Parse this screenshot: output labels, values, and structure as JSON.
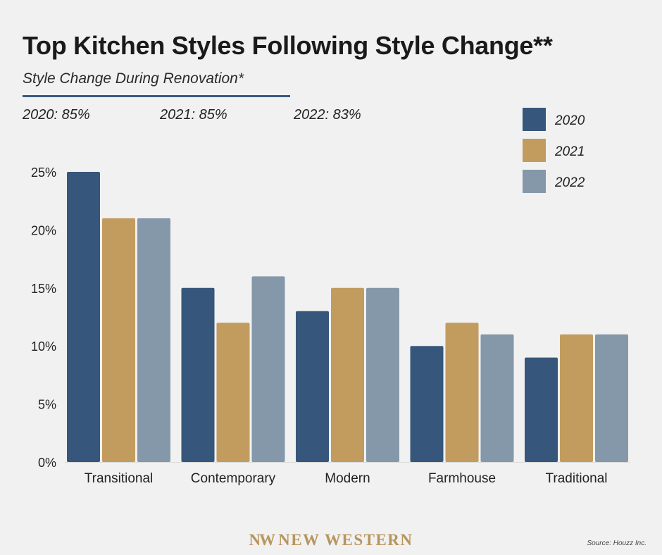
{
  "title": "Top Kitchen Styles Following Style Change**",
  "subtitle": "Style Change During Renovation*",
  "stats": [
    {
      "label": "2020: 85%"
    },
    {
      "label": "2021: 85%"
    },
    {
      "label": "2022: 83%"
    }
  ],
  "footer": {
    "logo_mark": "NW",
    "logo_text": "NEW WESTERN",
    "source": "Source: Houzz Inc."
  },
  "colors": {
    "2020": "#36577b",
    "2021": "#c29c5f",
    "2022": "#8598a9",
    "logo": "#b8955d",
    "rule": "#3a5a7d"
  },
  "chart_data": {
    "type": "bar",
    "categories": [
      "Transitional",
      "Contemporary",
      "Modern",
      "Farmhouse",
      "Traditional"
    ],
    "series": [
      {
        "name": "2020",
        "values": [
          25,
          15,
          13,
          10,
          9
        ]
      },
      {
        "name": "2021",
        "values": [
          21,
          12,
          15,
          12,
          11
        ]
      },
      {
        "name": "2022",
        "values": [
          21,
          16,
          15,
          11,
          11
        ]
      }
    ],
    "yticks": [
      "0%",
      "5%",
      "10%",
      "15%",
      "20%",
      "25%"
    ],
    "ytick_values": [
      0,
      5,
      10,
      15,
      20,
      25
    ],
    "ylim": [
      0,
      25
    ],
    "grid": false,
    "legend_position": "top-right"
  }
}
